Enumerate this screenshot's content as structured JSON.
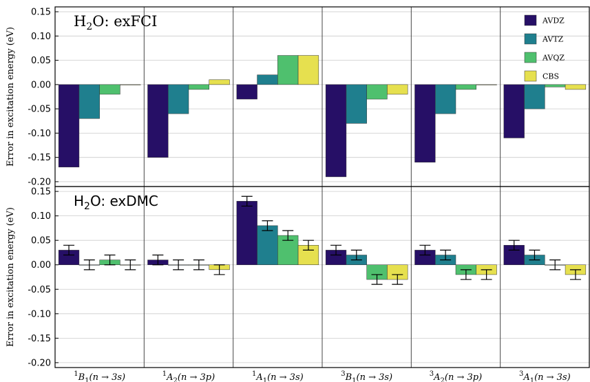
{
  "chart_data": {
    "type": "bar",
    "categories": [
      {
        "sup": "1",
        "sym": "B",
        "sub": "1",
        "trans": "(n → 3s)"
      },
      {
        "sup": "1",
        "sym": "A",
        "sub": "2",
        "trans": "(n → 3p)"
      },
      {
        "sup": "1",
        "sym": "A",
        "sub": "1",
        "trans": "(n → 3s)"
      },
      {
        "sup": "3",
        "sym": "B",
        "sub": "1",
        "trans": "(n → 3s)"
      },
      {
        "sup": "3",
        "sym": "A",
        "sub": "2",
        "trans": "(n → 3p)"
      },
      {
        "sup": "3",
        "sym": "A",
        "sub": "1",
        "trans": "(n → 3s)"
      }
    ],
    "legend": {
      "placement": "top-right",
      "entries": [
        {
          "name": "AVDZ",
          "color": "#260f66"
        },
        {
          "name": "AVTZ",
          "color": "#1f7f8e"
        },
        {
          "name": "AVQZ",
          "color": "#4fc06e"
        },
        {
          "name": "CBS",
          "color": "#e6e04f"
        }
      ]
    },
    "ylabel": "Error in excitation energy (eV)",
    "ylim": [
      -0.21,
      0.16
    ],
    "yticks": [
      "0.15",
      "0.10",
      "0.05",
      "0.00",
      "-0.05",
      "-0.10",
      "-0.15",
      "-0.20"
    ],
    "grid": true,
    "panels": [
      {
        "title": {
          "pre": "H",
          "sub": "2",
          "post": "O: exFCI"
        },
        "series": [
          {
            "name": "AVDZ",
            "values": [
              -0.17,
              -0.15,
              -0.03,
              -0.19,
              -0.16,
              -0.11
            ]
          },
          {
            "name": "AVTZ",
            "values": [
              -0.07,
              -0.06,
              0.02,
              -0.08,
              -0.06,
              -0.05
            ]
          },
          {
            "name": "AVQZ",
            "values": [
              -0.02,
              -0.01,
              0.06,
              -0.03,
              -0.01,
              -0.005
            ]
          },
          {
            "name": "CBS",
            "values": [
              0.0,
              0.01,
              0.06,
              -0.02,
              0.0,
              -0.01
            ]
          }
        ]
      },
      {
        "title": {
          "pre": "H",
          "sub": "2",
          "post": "O: exDMC"
        },
        "series": [
          {
            "name": "AVDZ",
            "values": [
              0.03,
              0.01,
              0.13,
              0.03,
              0.03,
              0.04
            ],
            "errors": [
              0.01,
              0.01,
              0.01,
              0.01,
              0.01,
              0.01
            ]
          },
          {
            "name": "AVTZ",
            "values": [
              0.0,
              0.0,
              0.08,
              0.02,
              0.02,
              0.02
            ],
            "errors": [
              0.01,
              0.01,
              0.01,
              0.01,
              0.01,
              0.01
            ]
          },
          {
            "name": "AVQZ",
            "values": [
              0.01,
              0.0,
              0.06,
              -0.03,
              -0.02,
              0.0
            ],
            "errors": [
              0.01,
              0.01,
              0.01,
              0.01,
              0.01,
              0.01
            ]
          },
          {
            "name": "CBS",
            "values": [
              0.0,
              -0.01,
              0.04,
              -0.03,
              -0.02,
              -0.02
            ],
            "errors": [
              0.01,
              0.01,
              0.01,
              0.01,
              0.01,
              0.01
            ]
          }
        ]
      }
    ]
  }
}
